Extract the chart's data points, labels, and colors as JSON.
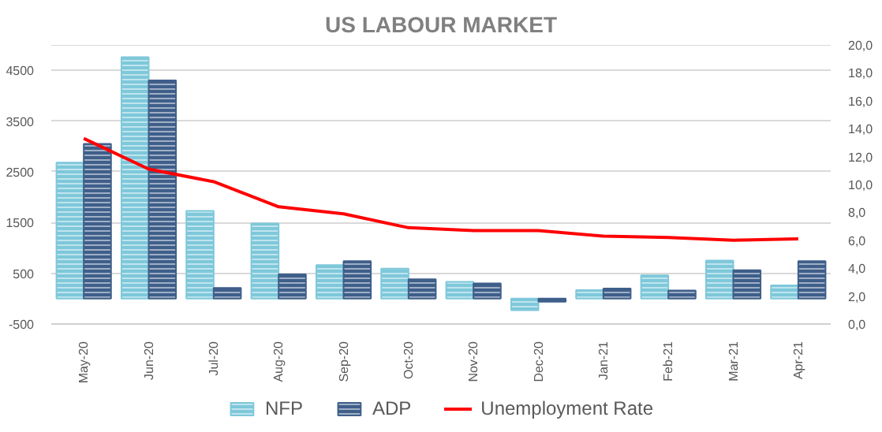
{
  "chart_data": {
    "type": "bar",
    "title": "US LABOUR MARKET",
    "categories": [
      "May-20",
      "Jun-20",
      "Jul-20",
      "Aug-20",
      "Sep-20",
      "Oct-20",
      "Nov-20",
      "Dec-20",
      "Jan-21",
      "Feb-21",
      "Mar-21",
      "Apr-21"
    ],
    "series": [
      {
        "name": "NFP",
        "color": "#7ec8da",
        "values": [
          2680,
          4760,
          1730,
          1480,
          660,
          590,
          330,
          -230,
          170,
          460,
          750,
          260
        ]
      },
      {
        "name": "ADP",
        "color": "#3f5f8a",
        "values": [
          3050,
          4300,
          210,
          480,
          740,
          380,
          300,
          -60,
          200,
          160,
          560,
          740
        ]
      },
      {
        "name": "Unemployment Rate",
        "type": "line",
        "axis": "y2",
        "color": "#ff0000",
        "values": [
          13.3,
          11.1,
          10.2,
          8.4,
          7.9,
          6.9,
          6.7,
          6.7,
          6.3,
          6.2,
          6.0,
          6.1
        ]
      }
    ],
    "ylim": [
      -500,
      5000
    ],
    "yticks": [
      -500,
      500,
      1500,
      2500,
      3500,
      4500
    ],
    "y2lim": [
      0,
      20
    ],
    "y2ticks": [
      {
        "value": 0,
        "label": "0,0"
      },
      {
        "value": 2,
        "label": "2,0"
      },
      {
        "value": 4,
        "label": "4,0"
      },
      {
        "value": 6,
        "label": "6,0"
      },
      {
        "value": 8,
        "label": "8,0"
      },
      {
        "value": 10,
        "label": "10,0"
      },
      {
        "value": 12,
        "label": "12,0"
      },
      {
        "value": 14,
        "label": "14,0"
      },
      {
        "value": 16,
        "label": "16,0"
      },
      {
        "value": 18,
        "label": "18,0"
      },
      {
        "value": 20,
        "label": "20,0"
      }
    ],
    "grid": "y",
    "legend": "bottom"
  }
}
